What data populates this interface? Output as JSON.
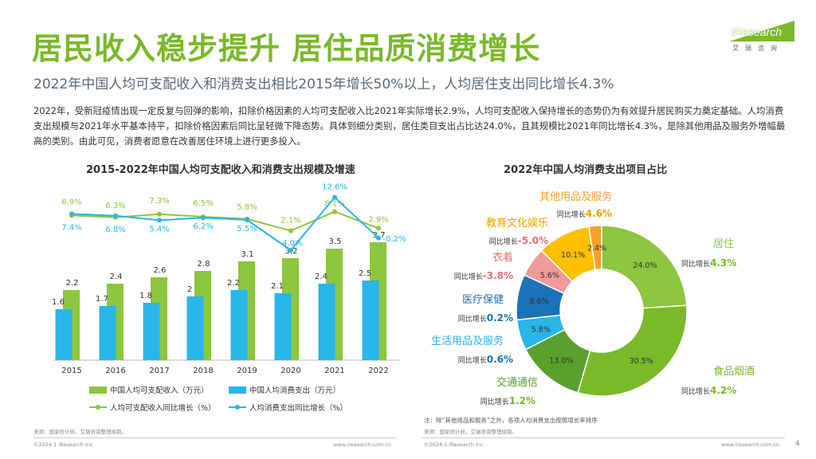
{
  "header": {
    "title": "居民收入稳步提升 居住品质消费增长",
    "subtitle": "2022年中国人均可支配收入和消费支出相比2015年增长50%以上，人均居住支出同比增长4.3%",
    "body": "2022年，受新冠疫情出现一定反复与回弹的影响，扣除价格因素的人均可支配收入比2021年实际增长2.9%，人均可支配收入保持增长的态势仍为有效提升居民购买力奠定基础。人均消费支出规模与2021年水平基本持平，扣除价格因素后同比呈轻微下降态势。具体到细分类别，居住类目支出占比达24.0%，且其规模比2021年同比增长4.3%，是除其他用品及服务外增幅最高的类别。由此可见，消费者愿意在改善居住环境上进行更多投入。",
    "logo_text": "iResearch",
    "logo_sub": "艾瑞咨询"
  },
  "colors": {
    "green": "#8dc63f",
    "blue": "#29b6e8",
    "title_green": "#7ab929"
  },
  "chart_data": [
    {
      "type": "bar",
      "title": "2015-2022年中国人均可支配收入和消费支出规模及增速",
      "categories": [
        "2015",
        "2016",
        "2017",
        "2018",
        "2019",
        "2020",
        "2021",
        "2022"
      ],
      "series": [
        {
          "name": "中国人均可支配收入（万元）",
          "type": "bar",
          "color": "#8dc63f",
          "values": [
            2.2,
            2.4,
            2.6,
            2.8,
            3.1,
            3.2,
            3.5,
            3.7
          ]
        },
        {
          "name": "中国人均消费支出（万元）",
          "type": "bar",
          "color": "#29b6e8",
          "values": [
            1.6,
            1.7,
            1.8,
            2,
            2.2,
            2.1,
            2.4,
            2.5
          ]
        },
        {
          "name": "人均可支配收入同比增长（%）",
          "type": "line",
          "color": "#8dc63f",
          "values": [
            6.9,
            6.3,
            7.3,
            6.5,
            5.8,
            2.1,
            8.1,
            2.9
          ],
          "labels": [
            "6.9%",
            "6.3%",
            "7.3%",
            "6.5%",
            "5.8%",
            "2.1%",
            "8.1%",
            "2.9%"
          ]
        },
        {
          "name": "人均消费支出同比增长（%）",
          "type": "line",
          "color": "#29b6e8",
          "values": [
            7.4,
            6.8,
            5.4,
            6.2,
            5.5,
            -4.0,
            12.6,
            -0.2
          ],
          "labels": [
            "7.4%",
            "6.8%",
            "5.4%",
            "6.2%",
            "5.5%",
            "-4.0%",
            "12.6%",
            "-0.2%"
          ]
        }
      ],
      "ylim_bar": [
        0,
        4
      ],
      "ylim_line": [
        -6,
        14
      ],
      "grid": false,
      "legend": "bottom"
    },
    {
      "type": "pie",
      "title": "2022年中国人均消费支出项目占比",
      "slices": [
        {
          "name": "居住",
          "value": 24.0,
          "label": "24.0%",
          "growth_label": "同比增长",
          "growth": "4.3%",
          "color": "#8dc63f"
        },
        {
          "name": "食品烟酒",
          "value": 30.5,
          "label": "30.5%",
          "growth_label": "同比增长",
          "growth": "4.2%",
          "color": "#7ab929"
        },
        {
          "name": "交通通信",
          "value": 13.0,
          "label": "13.0%",
          "growth_label": "同比增长",
          "growth": "1.2%",
          "color": "#5aa02c"
        },
        {
          "name": "生活用品及服务",
          "value": 5.8,
          "label": "5.8%",
          "growth_label": "同比增长",
          "growth": "0.6%",
          "color": "#29b6e8"
        },
        {
          "name": "医疗保健",
          "value": 8.6,
          "label": "8.6%",
          "growth_label": "同比增长",
          "growth": "0.2%",
          "color": "#1a73b8"
        },
        {
          "name": "衣着",
          "value": 5.6,
          "label": "5.6%",
          "growth_label": "同比增长",
          "growth": "-3.8%",
          "color": "#f09a9a"
        },
        {
          "name": "教育文化娱乐",
          "value": 10.1,
          "label": "10.1%",
          "growth_label": "同比增长",
          "growth": "-5.0%",
          "color": "#ffc000"
        },
        {
          "name": "其他用品及服务",
          "value": 2.4,
          "label": "2.4%",
          "growth_label": "同比增长",
          "growth": "4.6%",
          "color": "#f7a030"
        }
      ],
      "note": "注：除“其他用品和服务”之外，各项人均消费支出按照增长率排序"
    }
  ],
  "footer": {
    "source_left": "来源：国家统计局，艾瑞咨询整理绘制。",
    "source_right": "来源：国家统计局，艾瑞咨询整理绘制。",
    "copyright_left": "©2024.1 iResearch Inc.",
    "url_left": "www.iresearch.com.cn",
    "copyright_right": "©2024.1 iResearch Inc.",
    "url_right": "www.iresearch.com.cn",
    "page_number": "4"
  }
}
